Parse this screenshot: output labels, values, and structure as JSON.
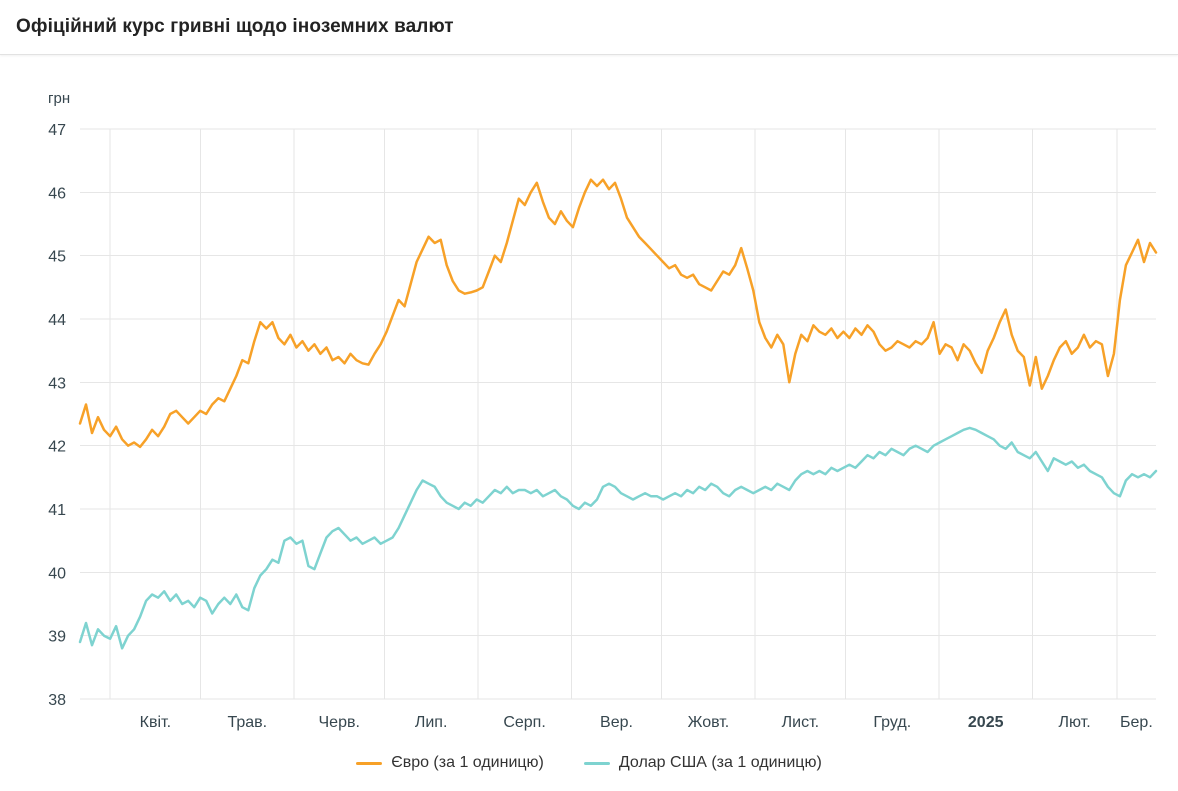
{
  "header": {
    "title": "Офіційний курс гривні щодо іноземних валют"
  },
  "chart_data": {
    "type": "line",
    "title": "Офіційний курс гривні щодо іноземних валют",
    "grid": true,
    "legend_position": "bottom",
    "y_axis": {
      "unit_label": "грн",
      "min": 38,
      "max": 47,
      "tick_step": 1,
      "ticks": [
        38,
        39,
        40,
        41,
        42,
        43,
        44,
        45,
        46,
        47
      ]
    },
    "x_axis": {
      "tick_labels": [
        "Квіт.",
        "Трав.",
        "Черв.",
        "Лип.",
        "Серп.",
        "Вер.",
        "Жовт.",
        "Лист.",
        "Груд.",
        "2025",
        "Лют.",
        "Бер."
      ],
      "bold_labels": [
        "2025"
      ],
      "month_boundary_days": [
        10,
        40,
        71,
        101,
        132,
        163,
        193,
        224,
        254,
        285,
        316,
        344
      ],
      "total_days": 357
    },
    "series": [
      {
        "id": "euro",
        "name": "Євро (за 1 одиницю)",
        "color": "#F7A128",
        "values": [
          42.35,
          42.65,
          42.2,
          42.45,
          42.25,
          42.15,
          42.3,
          42.1,
          42.0,
          42.05,
          41.98,
          42.1,
          42.25,
          42.15,
          42.3,
          42.5,
          42.55,
          42.45,
          42.35,
          42.45,
          42.55,
          42.5,
          42.65,
          42.75,
          42.7,
          42.9,
          43.1,
          43.35,
          43.3,
          43.65,
          43.95,
          43.85,
          43.95,
          43.7,
          43.6,
          43.75,
          43.55,
          43.65,
          43.5,
          43.6,
          43.45,
          43.55,
          43.35,
          43.4,
          43.3,
          43.45,
          43.35,
          43.3,
          43.28,
          43.45,
          43.6,
          43.8,
          44.05,
          44.3,
          44.2,
          44.55,
          44.9,
          45.1,
          45.3,
          45.2,
          45.25,
          44.85,
          44.6,
          44.45,
          44.4,
          44.42,
          44.45,
          44.5,
          44.75,
          45.0,
          44.9,
          45.2,
          45.55,
          45.9,
          45.8,
          46.0,
          46.15,
          45.85,
          45.6,
          45.5,
          45.7,
          45.55,
          45.45,
          45.75,
          46.0,
          46.2,
          46.1,
          46.2,
          46.05,
          46.15,
          45.9,
          45.6,
          45.45,
          45.3,
          45.2,
          45.1,
          45.0,
          44.9,
          44.8,
          44.85,
          44.7,
          44.65,
          44.7,
          44.55,
          44.5,
          44.45,
          44.6,
          44.75,
          44.7,
          44.85,
          45.12,
          44.8,
          44.45,
          43.95,
          43.7,
          43.55,
          43.75,
          43.6,
          43.0,
          43.45,
          43.75,
          43.65,
          43.9,
          43.8,
          43.75,
          43.85,
          43.7,
          43.8,
          43.7,
          43.85,
          43.75,
          43.9,
          43.8,
          43.6,
          43.5,
          43.55,
          43.65,
          43.6,
          43.55,
          43.65,
          43.6,
          43.7,
          43.95,
          43.45,
          43.6,
          43.55,
          43.35,
          43.6,
          43.5,
          43.3,
          43.15,
          43.5,
          43.7,
          43.95,
          44.15,
          43.75,
          43.5,
          43.4,
          42.95,
          43.4,
          42.9,
          43.1,
          43.35,
          43.55,
          43.65,
          43.45,
          43.55,
          43.75,
          43.55,
          43.65,
          43.6,
          43.1,
          43.45,
          44.3,
          44.85,
          45.05,
          45.25,
          44.9,
          45.2,
          45.05
        ]
      },
      {
        "id": "usd",
        "name": "Долар США (за 1 одиницю)",
        "color": "#7ED3D0",
        "values": [
          38.9,
          39.2,
          38.85,
          39.1,
          39.0,
          38.95,
          39.15,
          38.8,
          39.0,
          39.1,
          39.3,
          39.55,
          39.65,
          39.6,
          39.7,
          39.55,
          39.65,
          39.5,
          39.55,
          39.45,
          39.6,
          39.55,
          39.35,
          39.5,
          39.6,
          39.5,
          39.65,
          39.45,
          39.4,
          39.75,
          39.95,
          40.05,
          40.2,
          40.15,
          40.5,
          40.55,
          40.45,
          40.5,
          40.1,
          40.05,
          40.3,
          40.55,
          40.65,
          40.7,
          40.6,
          40.5,
          40.55,
          40.45,
          40.5,
          40.55,
          40.45,
          40.5,
          40.55,
          40.7,
          40.9,
          41.1,
          41.3,
          41.45,
          41.4,
          41.35,
          41.2,
          41.1,
          41.05,
          41.0,
          41.1,
          41.05,
          41.15,
          41.1,
          41.2,
          41.3,
          41.25,
          41.35,
          41.25,
          41.3,
          41.3,
          41.25,
          41.3,
          41.2,
          41.25,
          41.3,
          41.2,
          41.15,
          41.05,
          41.0,
          41.1,
          41.05,
          41.15,
          41.35,
          41.4,
          41.35,
          41.25,
          41.2,
          41.15,
          41.2,
          41.25,
          41.2,
          41.2,
          41.15,
          41.2,
          41.25,
          41.2,
          41.3,
          41.25,
          41.35,
          41.3,
          41.4,
          41.35,
          41.25,
          41.2,
          41.3,
          41.35,
          41.3,
          41.25,
          41.3,
          41.35,
          41.3,
          41.4,
          41.35,
          41.3,
          41.45,
          41.55,
          41.6,
          41.55,
          41.6,
          41.55,
          41.65,
          41.6,
          41.65,
          41.7,
          41.65,
          41.75,
          41.85,
          41.8,
          41.9,
          41.85,
          41.95,
          41.9,
          41.85,
          41.95,
          42.0,
          41.95,
          41.9,
          42.0,
          42.05,
          42.1,
          42.15,
          42.2,
          42.25,
          42.28,
          42.25,
          42.2,
          42.15,
          42.1,
          42.0,
          41.95,
          42.05,
          41.9,
          41.85,
          41.8,
          41.9,
          41.75,
          41.6,
          41.8,
          41.75,
          41.7,
          41.75,
          41.65,
          41.7,
          41.6,
          41.55,
          41.5,
          41.35,
          41.25,
          41.2,
          41.45,
          41.55,
          41.5,
          41.55,
          41.5,
          41.6
        ]
      }
    ]
  },
  "colors": {
    "grid": "#e6e6e6",
    "axis_text": "#37474f",
    "title_text": "#232323"
  }
}
